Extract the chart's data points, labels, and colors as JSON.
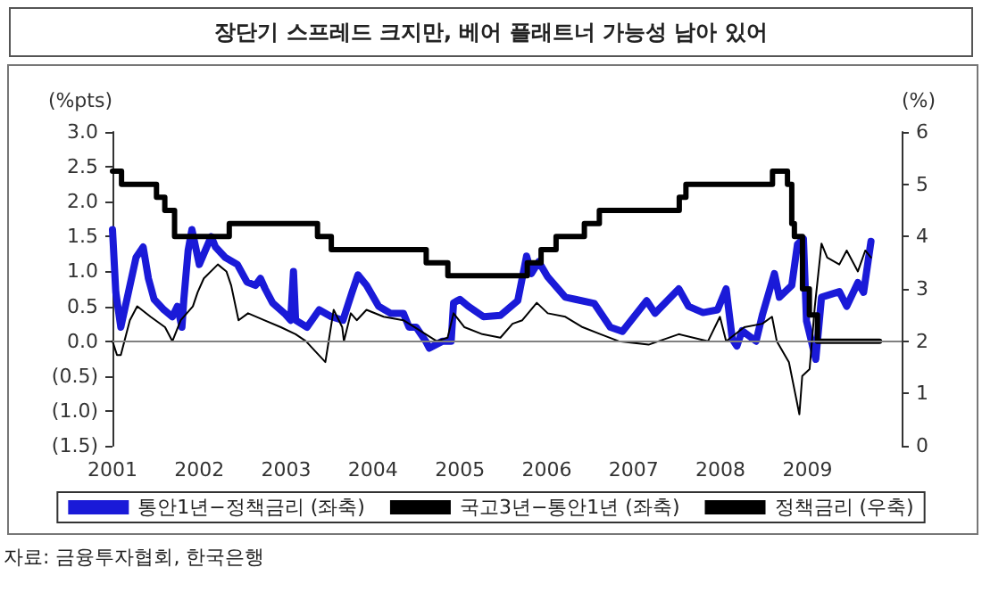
{
  "chart_data": {
    "type": "line",
    "title": "장단기 스프레드 크지만, 베어 플래트너 가능성 남아 있어",
    "ylabel": "(%pts)",
    "y2label": "(%)",
    "annotations": [
      "자료: 금융투자협회, 한국은행"
    ],
    "legend": "bottom",
    "grid": false,
    "marker": "none",
    "xlim": [
      "2001-01-01",
      "2010-02-01"
    ],
    "xticks": [
      "2001",
      "2002",
      "2003",
      "2004",
      "2005",
      "2006",
      "2007",
      "2008",
      "2009"
    ],
    "ylim": [
      -1.5,
      3
    ],
    "yticks": [
      {
        "value": -1.5,
        "label": "(1.5)"
      },
      {
        "value": -1,
        "label": "(1.0)"
      },
      {
        "value": -0.5,
        "label": "(0.5)"
      },
      {
        "value": 0,
        "label": "0.0"
      },
      {
        "value": 0.5,
        "label": "0.5"
      },
      {
        "value": 1,
        "label": "1.0"
      },
      {
        "value": 1.5,
        "label": "1.5"
      },
      {
        "value": 2,
        "label": "2.0"
      },
      {
        "value": 2.5,
        "label": "2.5"
      },
      {
        "value": 3,
        "label": "3.0"
      }
    ],
    "y2lim": [
      0,
      6
    ],
    "y2ticks": [
      0,
      1,
      2,
      3,
      4,
      5,
      6
    ],
    "ref_lines": [
      {
        "axis": "y",
        "value": 0,
        "color": "#808080"
      }
    ],
    "series": [
      {
        "name": "통안1년−정책금리 (좌축)",
        "color": "#1a1ad8",
        "x": [
          "2001-01-01",
          "2001-01-15",
          "2001-02-05",
          "2001-04-10",
          "2001-05-10",
          "2001-06-01",
          "2001-06-25",
          "2001-08-05",
          "2001-09-10",
          "2001-10-01",
          "2001-10-20",
          "2001-10-28",
          "2001-11-15",
          "2001-12-01",
          "2002-01-01",
          "2002-02-20",
          "2002-03-10",
          "2002-04-20",
          "2002-06-10",
          "2002-07-20",
          "2002-08-25",
          "2002-09-15",
          "2002-10-05",
          "2002-11-05",
          "2002-12-25",
          "2003-01-20",
          "2003-02-01",
          "2003-02-10",
          "2003-03-30",
          "2003-05-20",
          "2003-07-10",
          "2003-08-28",
          "2003-10-05",
          "2003-10-30",
          "2003-12-05",
          "2004-01-25",
          "2004-03-15",
          "2004-05-08",
          "2004-06-01",
          "2004-07-01",
          "2004-08-10",
          "2004-08-25",
          "2004-10-20",
          "2004-11-25",
          "2004-12-05",
          "2005-01-01",
          "2005-02-05",
          "2005-04-10",
          "2005-06-20",
          "2005-09-01",
          "2005-10-08",
          "2005-10-28",
          "2005-11-28",
          "2006-01-05",
          "2006-03-20",
          "2006-05-01",
          "2006-07-20",
          "2006-09-25",
          "2006-11-15",
          "2007-02-25",
          "2007-04-01",
          "2007-07-10",
          "2007-08-20",
          "2007-10-20",
          "2007-12-20",
          "2008-01-25",
          "2008-02-20",
          "2008-03-10",
          "2008-04-01",
          "2008-05-30",
          "2008-06-25",
          "2008-08-15",
          "2008-09-05",
          "2008-10-27",
          "2008-11-20",
          "2008-12-15",
          "2008-12-28",
          "2009-02-05",
          "2009-03-01",
          "2009-05-15",
          "2009-06-15",
          "2009-08-01",
          "2009-08-25",
          "2009-09-25"
        ],
        "values": [
          1.6,
          0.7,
          0.2,
          1.2,
          1.35,
          0.9,
          0.6,
          0.45,
          0.35,
          0.5,
          0.2,
          0.6,
          1.3,
          1.6,
          1.1,
          1.5,
          1.35,
          1.2,
          1.1,
          0.85,
          0.8,
          0.9,
          0.75,
          0.55,
          0.4,
          0.3,
          1.0,
          0.3,
          0.2,
          0.45,
          0.35,
          0.3,
          0.7,
          0.95,
          0.8,
          0.5,
          0.4,
          0.4,
          0.2,
          0.2,
          0.0,
          -0.1,
          0.0,
          0.0,
          0.55,
          0.6,
          0.5,
          0.35,
          0.37,
          0.58,
          1.22,
          0.97,
          1.14,
          0.92,
          0.63,
          0.6,
          0.54,
          0.2,
          0.14,
          0.58,
          0.4,
          0.75,
          0.5,
          0.41,
          0.45,
          0.75,
          0.03,
          -0.07,
          0.15,
          0.0,
          0.37,
          0.97,
          0.63,
          0.8,
          1.39,
          1.47,
          0.29,
          -0.26,
          0.63,
          0.71,
          0.5,
          0.84,
          0.7,
          1.43
        ]
      },
      {
        "name": "국고3년−통안1년 (좌축)",
        "color": "#000000",
        "x": [
          "2001-01-01",
          "2001-01-20",
          "2001-02-05",
          "2001-03-15",
          "2001-04-15",
          "2001-06-10",
          "2001-08-10",
          "2001-09-10",
          "2001-10-15",
          "2001-12-05",
          "2001-12-25",
          "2002-01-20",
          "2002-03-20",
          "2002-04-25",
          "2002-05-15",
          "2002-06-15",
          "2002-07-25",
          "2002-10-01",
          "2002-12-10",
          "2003-02-10",
          "2003-03-25",
          "2003-06-15",
          "2003-07-20",
          "2003-08-25",
          "2003-09-01",
          "2003-09-30",
          "2003-10-25",
          "2003-12-05",
          "2004-02-15",
          "2004-05-08",
          "2004-06-25",
          "2004-08-10",
          "2004-09-25",
          "2004-11-10",
          "2004-12-05",
          "2005-01-20",
          "2005-04-05",
          "2005-06-20",
          "2005-08-10",
          "2005-09-20",
          "2005-11-20",
          "2006-01-05",
          "2006-03-20",
          "2006-06-01",
          "2006-08-15",
          "2006-10-30",
          "2007-03-05",
          "2007-07-10",
          "2007-11-10",
          "2007-12-30",
          "2008-01-25",
          "2008-04-10",
          "2008-06-25",
          "2008-08-05",
          "2008-08-25",
          "2008-10-15",
          "2008-11-28",
          "2008-12-10",
          "2009-01-10",
          "2009-02-01",
          "2009-03-01",
          "2009-03-25",
          "2009-05-15",
          "2009-06-15",
          "2009-08-01",
          "2009-09-01",
          "2009-09-25"
        ],
        "values": [
          0.0,
          -0.2,
          -0.2,
          0.3,
          0.5,
          0.35,
          0.2,
          0.0,
          0.3,
          0.5,
          0.7,
          0.9,
          1.1,
          1.0,
          0.8,
          0.3,
          0.4,
          0.3,
          0.2,
          0.1,
          0.0,
          -0.3,
          0.45,
          0.2,
          0.0,
          0.4,
          0.3,
          0.45,
          0.35,
          0.3,
          0.2,
          0.1,
          0.0,
          0.05,
          0.4,
          0.2,
          0.1,
          0.05,
          0.25,
          0.3,
          0.55,
          0.4,
          0.35,
          0.2,
          0.1,
          0.0,
          -0.05,
          0.1,
          0.0,
          0.35,
          0.0,
          0.2,
          0.25,
          0.35,
          0.0,
          -0.3,
          -1.05,
          -0.5,
          -0.4,
          0.5,
          1.4,
          1.2,
          1.1,
          1.3,
          1.0,
          1.3,
          1.2
        ]
      },
      {
        "name": "정책금리 (우축)",
        "type": "step",
        "axis": "y2",
        "color": "#000000",
        "x": [
          "2001-01-01",
          "2001-02-08",
          "2001-07-05",
          "2001-08-09",
          "2001-09-19",
          "2002-05-07",
          "2003-05-13",
          "2003-07-10",
          "2004-08-12",
          "2004-11-11",
          "2005-10-11",
          "2005-12-08",
          "2006-02-09",
          "2006-06-08",
          "2006-08-10",
          "2007-07-12",
          "2007-08-09",
          "2008-08-07",
          "2008-10-09",
          "2008-10-27",
          "2008-11-07",
          "2008-12-11",
          "2009-01-09",
          "2009-02-12",
          "2009-10-31"
        ],
        "values": [
          5.25,
          5.0,
          4.75,
          4.5,
          4.0,
          4.25,
          4.0,
          3.75,
          3.5,
          3.25,
          3.5,
          3.75,
          4.0,
          4.25,
          4.5,
          4.75,
          5.0,
          5.25,
          5.0,
          4.25,
          4.0,
          3.0,
          2.5,
          2.0,
          2.0
        ]
      }
    ]
  }
}
